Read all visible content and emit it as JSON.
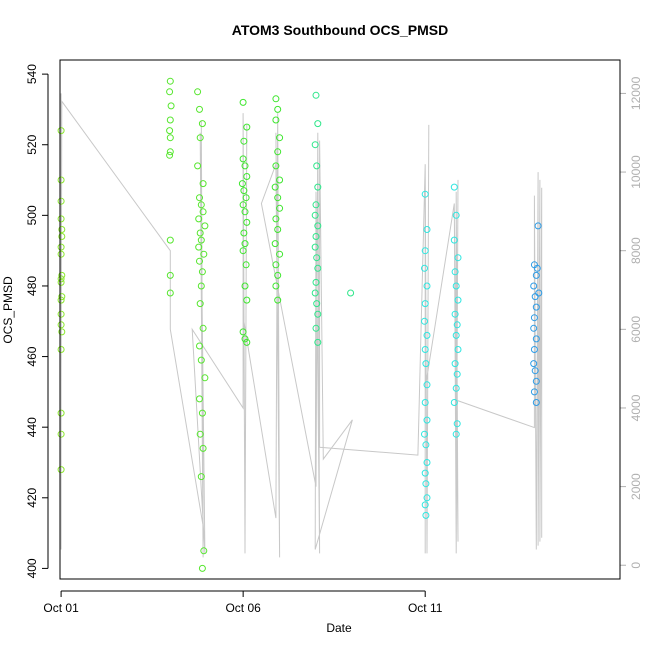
{
  "chart_data": {
    "type": "scatter",
    "title": "ATOM3 Southbound OCS_PMSD",
    "xlabel": "Date",
    "ylabel": "OCS_PMSD",
    "x_unit": "days (Oct)",
    "xlim": [
      0.97,
      16.35
    ],
    "ylim": [
      397,
      544
    ],
    "y_ticks": [
      400,
      420,
      440,
      460,
      480,
      500,
      520,
      540
    ],
    "x_ticks": [
      {
        "day": 1,
        "label": "Oct 01"
      },
      {
        "day": 6,
        "label": "Oct 06"
      },
      {
        "day": 11,
        "label": "Oct 11"
      }
    ],
    "y2_ticks": [
      0,
      2000,
      4000,
      6000,
      8000,
      10000,
      12000
    ],
    "y2lim": [
      -350,
      12850
    ],
    "grid": false,
    "legend": "none",
    "colors": {
      "secondary_line": "#c8c8c8",
      "right_axis": "#b0b0b0"
    },
    "scatter_series": [
      {
        "color": "#8ae62e",
        "points": [
          [
            1.0,
            524
          ],
          [
            1.0,
            510
          ],
          [
            1.0,
            504
          ],
          [
            1.0,
            499
          ],
          [
            1.02,
            496
          ],
          [
            1.02,
            494
          ],
          [
            1.0,
            491
          ],
          [
            1.0,
            489
          ],
          [
            1.02,
            483
          ],
          [
            1.0,
            482
          ],
          [
            1.0,
            481
          ],
          [
            1.02,
            477
          ],
          [
            1.0,
            476
          ],
          [
            1.0,
            472
          ],
          [
            1.0,
            469
          ],
          [
            1.02,
            467
          ],
          [
            1.0,
            462
          ],
          [
            1.0,
            444
          ],
          [
            1.0,
            438
          ],
          [
            1.0,
            428
          ]
        ]
      },
      {
        "color": "#56e62e",
        "points": [
          [
            4.0,
            538
          ],
          [
            3.98,
            535
          ],
          [
            4.02,
            531
          ],
          [
            4.0,
            527
          ],
          [
            3.98,
            524
          ],
          [
            4.0,
            522
          ],
          [
            4.0,
            518
          ],
          [
            3.98,
            517
          ],
          [
            4.0,
            493
          ],
          [
            4.0,
            483
          ],
          [
            4.0,
            478
          ],
          [
            4.75,
            535
          ],
          [
            4.8,
            530
          ],
          [
            4.88,
            526
          ],
          [
            4.82,
            522
          ],
          [
            4.75,
            514
          ],
          [
            4.9,
            509
          ],
          [
            4.8,
            505
          ],
          [
            4.85,
            503
          ],
          [
            4.9,
            501
          ],
          [
            4.78,
            499
          ],
          [
            4.95,
            497
          ],
          [
            4.82,
            495
          ],
          [
            4.85,
            493
          ],
          [
            4.78,
            491
          ],
          [
            4.92,
            489
          ],
          [
            4.8,
            487
          ],
          [
            4.88,
            484
          ],
          [
            4.85,
            480
          ],
          [
            4.82,
            475
          ],
          [
            4.9,
            468
          ],
          [
            4.8,
            463
          ],
          [
            4.85,
            459
          ],
          [
            4.95,
            454
          ],
          [
            4.8,
            448
          ],
          [
            4.88,
            444
          ],
          [
            4.82,
            438
          ],
          [
            4.9,
            434
          ],
          [
            4.85,
            426
          ],
          [
            4.92,
            405
          ],
          [
            4.88,
            400
          ]
        ]
      },
      {
        "color": "#3ee62e",
        "points": [
          [
            6.0,
            532
          ],
          [
            6.1,
            525
          ],
          [
            6.02,
            521
          ],
          [
            6.0,
            516
          ],
          [
            6.05,
            514
          ],
          [
            6.1,
            511
          ],
          [
            5.98,
            509
          ],
          [
            6.02,
            507
          ],
          [
            6.08,
            505
          ],
          [
            6.0,
            503
          ],
          [
            6.05,
            501
          ],
          [
            6.1,
            498
          ],
          [
            6.02,
            495
          ],
          [
            6.05,
            492
          ],
          [
            6.0,
            490
          ],
          [
            6.08,
            486
          ],
          [
            6.05,
            480
          ],
          [
            6.1,
            476
          ],
          [
            6.0,
            467
          ],
          [
            6.05,
            465
          ],
          [
            6.1,
            464
          ],
          [
            6.9,
            533
          ],
          [
            6.95,
            530
          ],
          [
            6.9,
            527
          ],
          [
            7.0,
            522
          ],
          [
            6.95,
            518
          ],
          [
            6.9,
            514
          ],
          [
            7.0,
            510
          ],
          [
            6.88,
            508
          ],
          [
            6.95,
            505
          ],
          [
            7.0,
            502
          ],
          [
            6.9,
            499
          ],
          [
            6.95,
            496
          ],
          [
            6.88,
            492
          ],
          [
            7.0,
            489
          ],
          [
            6.9,
            486
          ],
          [
            6.95,
            483
          ],
          [
            6.9,
            480
          ],
          [
            6.95,
            476
          ]
        ]
      },
      {
        "color": "#2ee68a",
        "points": [
          [
            8.0,
            534
          ],
          [
            8.05,
            526
          ],
          [
            7.98,
            520
          ],
          [
            8.02,
            514
          ],
          [
            8.05,
            508
          ],
          [
            8.0,
            503
          ],
          [
            7.98,
            500
          ],
          [
            8.05,
            497
          ],
          [
            8.0,
            494
          ],
          [
            7.98,
            491
          ],
          [
            8.02,
            488
          ],
          [
            8.05,
            485
          ],
          [
            8.0,
            481
          ],
          [
            7.98,
            478
          ],
          [
            8.02,
            475
          ],
          [
            8.05,
            472
          ],
          [
            8.0,
            468
          ],
          [
            8.05,
            464
          ],
          [
            8.95,
            478
          ]
        ]
      },
      {
        "color": "#2ee6e0",
        "points": [
          [
            11.0,
            506
          ],
          [
            11.05,
            496
          ],
          [
            11.0,
            490
          ],
          [
            10.98,
            485
          ],
          [
            11.05,
            480
          ],
          [
            11.0,
            475
          ],
          [
            10.98,
            470
          ],
          [
            11.05,
            466
          ],
          [
            11.0,
            462
          ],
          [
            11.02,
            458
          ],
          [
            11.05,
            452
          ],
          [
            11.0,
            447
          ],
          [
            11.05,
            442
          ],
          [
            10.98,
            438
          ],
          [
            11.02,
            435
          ],
          [
            11.05,
            430
          ],
          [
            11.0,
            427
          ],
          [
            11.02,
            424
          ],
          [
            11.05,
            420
          ],
          [
            11.0,
            418
          ],
          [
            11.02,
            415
          ],
          [
            11.8,
            508
          ],
          [
            11.85,
            500
          ],
          [
            11.8,
            493
          ],
          [
            11.9,
            488
          ],
          [
            11.82,
            484
          ],
          [
            11.85,
            480
          ],
          [
            11.9,
            476
          ],
          [
            11.82,
            472
          ],
          [
            11.88,
            469
          ],
          [
            11.85,
            466
          ],
          [
            11.9,
            462
          ],
          [
            11.82,
            458
          ],
          [
            11.88,
            455
          ],
          [
            11.85,
            451
          ],
          [
            11.8,
            447
          ],
          [
            11.88,
            441
          ],
          [
            11.85,
            438
          ]
        ]
      },
      {
        "color": "#2e9ce6",
        "points": [
          [
            14.0,
            486
          ],
          [
            14.05,
            483
          ],
          [
            13.98,
            480
          ],
          [
            14.02,
            477
          ],
          [
            14.05,
            474
          ],
          [
            14.0,
            471
          ],
          [
            13.98,
            468
          ],
          [
            14.05,
            465
          ],
          [
            14.0,
            462
          ],
          [
            13.98,
            458
          ],
          [
            14.02,
            456
          ],
          [
            14.05,
            453
          ],
          [
            14.0,
            450
          ],
          [
            14.05,
            447
          ],
          [
            14.1,
            497
          ],
          [
            14.08,
            485
          ],
          [
            14.12,
            478
          ]
        ]
      }
    ],
    "secondary_line": {
      "axis": "right",
      "points": [
        [
          1.0,
          12000
        ],
        [
          1.0,
          400
        ],
        [
          1.0,
          4500
        ],
        [
          1.02,
          11800
        ],
        [
          4.0,
          8000
        ],
        [
          4.0,
          6000
        ],
        [
          4.9,
          1000
        ],
        [
          4.85,
          11300
        ],
        [
          4.9,
          200
        ],
        [
          4.82,
          11000
        ],
        [
          4.95,
          300
        ],
        [
          4.6,
          6000
        ],
        [
          6.0,
          4000
        ],
        [
          6.0,
          11500
        ],
        [
          6.05,
          300
        ],
        [
          6.1,
          11200
        ],
        [
          6.05,
          500
        ],
        [
          6.02,
          6200
        ],
        [
          6.9,
          1200
        ],
        [
          6.95,
          11500
        ],
        [
          7.0,
          200
        ],
        [
          6.9,
          11000
        ],
        [
          7.0,
          300
        ],
        [
          6.9,
          10200
        ],
        [
          6.5,
          9200
        ],
        [
          8.0,
          2000
        ],
        [
          8.05,
          11000
        ],
        [
          8.1,
          300
        ],
        [
          8.0,
          9500
        ],
        [
          7.98,
          400
        ],
        [
          9.0,
          3700
        ],
        [
          8.2,
          2700
        ],
        [
          8.1,
          10800
        ],
        [
          8.1,
          3000
        ],
        [
          10.8,
          2800
        ],
        [
          11.0,
          10200
        ],
        [
          11.05,
          300
        ],
        [
          11.1,
          11200
        ],
        [
          11.05,
          500
        ],
        [
          11.0,
          9800
        ],
        [
          11.0,
          300
        ],
        [
          11.0,
          9200
        ],
        [
          11.0,
          4500
        ],
        [
          11.8,
          9200
        ],
        [
          11.85,
          400
        ],
        [
          11.9,
          9800
        ],
        [
          11.85,
          300
        ],
        [
          11.85,
          9500
        ],
        [
          11.9,
          600
        ],
        [
          11.8,
          9000
        ],
        [
          11.85,
          4200
        ],
        [
          14.0,
          3500
        ],
        [
          14.0,
          9400
        ],
        [
          14.05,
          400
        ],
        [
          14.1,
          10000
        ],
        [
          14.1,
          500
        ],
        [
          14.15,
          9800
        ],
        [
          14.15,
          600
        ],
        [
          14.2,
          9600
        ],
        [
          14.2,
          700
        ]
      ]
    }
  }
}
